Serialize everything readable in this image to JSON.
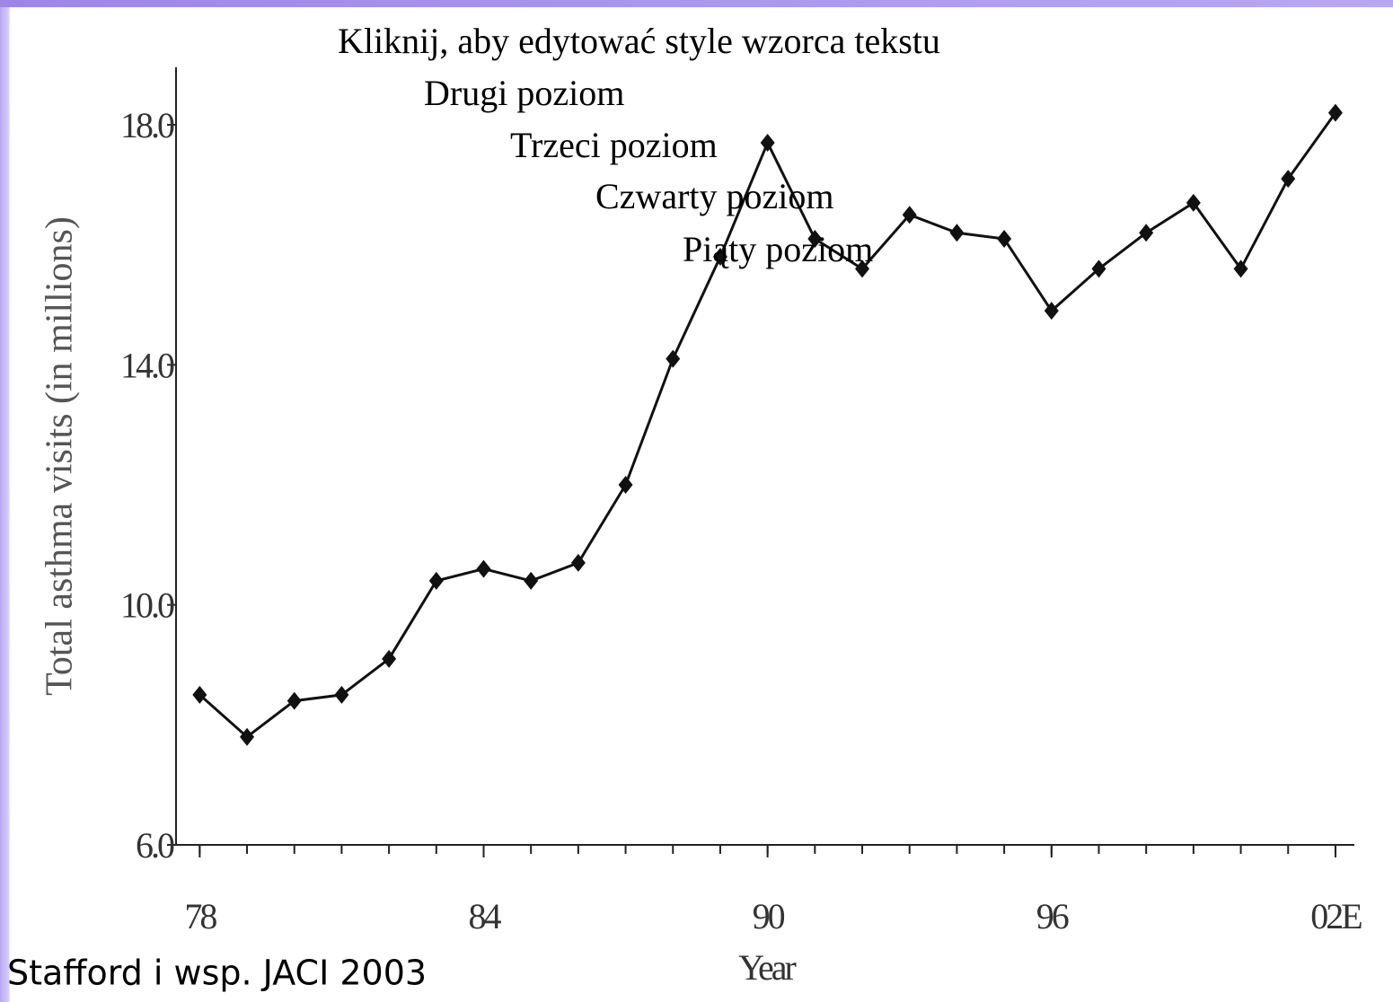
{
  "chart_data": {
    "type": "line",
    "y_label": "Total asthma visits (in millions)",
    "x_label": "Year",
    "x": [
      1978,
      1979,
      1980,
      1981,
      1982,
      1983,
      1984,
      1985,
      1986,
      1987,
      1988,
      1989,
      1990,
      1991,
      1992,
      1993,
      1994,
      1995,
      1996,
      1997,
      1998,
      1999,
      2000,
      2001,
      2002
    ],
    "series": [
      {
        "color": "#111111",
        "values": [
          8.5,
          7.8,
          8.4,
          8.5,
          9.1,
          10.4,
          10.6,
          10.4,
          10.7,
          12.0,
          14.1,
          15.8,
          17.7,
          16.1,
          15.6,
          16.5,
          16.2,
          16.1,
          14.9,
          15.6,
          16.2,
          16.7,
          15.6,
          17.1,
          18.2
        ]
      }
    ],
    "xlim": [
      1977.5,
      2002.4
    ],
    "xticks": [
      {
        "value": 1978,
        "label": "78"
      },
      {
        "value": 1984,
        "label": "84"
      },
      {
        "value": 1990,
        "label": "90"
      },
      {
        "value": 1996,
        "label": "96"
      },
      {
        "value": 2002,
        "label": "02E"
      }
    ],
    "ylim": [
      6,
      19
    ],
    "yticks": [
      {
        "value": 6,
        "label": "6.0"
      },
      {
        "value": 10,
        "label": "10.0"
      },
      {
        "value": 14,
        "label": "14.0"
      },
      {
        "value": 18,
        "label": "18.0"
      }
    ],
    "grid": false
  },
  "slide": {
    "placeholder": [
      "Kliknij, aby edytować style wzorca tekstu",
      "Drugi poziom",
      "Trzeci poziom",
      "Czwarty poziom",
      "Piąty poziom"
    ],
    "citation": "Stafford i wsp. JACI 2003"
  }
}
